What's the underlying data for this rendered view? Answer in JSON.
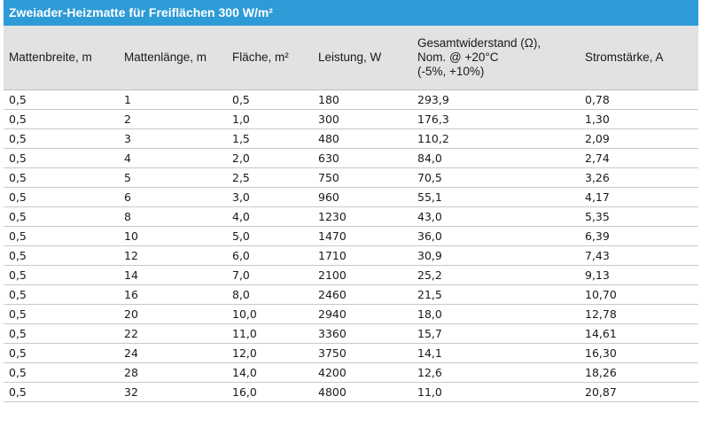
{
  "title": "Zweiader-Heizmatte für Freiflächen 300 W/m²",
  "headers": [
    {
      "lines": [
        "Mattenbreite, m"
      ]
    },
    {
      "lines": [
        "Mattenlänge, m"
      ]
    },
    {
      "lines": [
        "Fläche, m²"
      ]
    },
    {
      "lines": [
        "Leistung, W"
      ]
    },
    {
      "lines": [
        "Gesamtwiderstand (Ω),",
        "Nom. @ +20°C",
        "(-5%, +10%)"
      ]
    },
    {
      "lines": [
        "Stromstärke, A"
      ]
    }
  ],
  "rows": [
    [
      "0,5",
      "1",
      "0,5",
      "180",
      "293,9",
      "0,78"
    ],
    [
      "0,5",
      "2",
      "1,0",
      "300",
      "176,3",
      "1,30"
    ],
    [
      "0,5",
      "3",
      "1,5",
      "480",
      "110,2",
      "2,09"
    ],
    [
      "0,5",
      "4",
      "2,0",
      "630",
      "84,0",
      "2,74"
    ],
    [
      "0,5",
      "5",
      "2,5",
      "750",
      "70,5",
      "3,26"
    ],
    [
      "0,5",
      "6",
      "3,0",
      "960",
      "55,1",
      "4,17"
    ],
    [
      "0,5",
      "8",
      "4,0",
      "1230",
      "43,0",
      "5,35"
    ],
    [
      "0,5",
      "10",
      "5,0",
      "1470",
      "36,0",
      "6,39"
    ],
    [
      "0,5",
      "12",
      "6,0",
      "1710",
      "30,9",
      "7,43"
    ],
    [
      "0,5",
      "14",
      "7,0",
      "2100",
      "25,2",
      "9,13"
    ],
    [
      "0,5",
      "16",
      "8,0",
      "2460",
      "21,5",
      "10,70"
    ],
    [
      "0,5",
      "20",
      "10,0",
      "2940",
      "18,0",
      "12,78"
    ],
    [
      "0,5",
      "22",
      "11,0",
      "3360",
      "15,7",
      "14,61"
    ],
    [
      "0,5",
      "24",
      "12,0",
      "3750",
      "14,1",
      "16,30"
    ],
    [
      "0,5",
      "28",
      "14,0",
      "4200",
      "12,6",
      "18,26"
    ],
    [
      "0,5",
      "32",
      "16,0",
      "4800",
      "11,0",
      "20,87"
    ]
  ]
}
